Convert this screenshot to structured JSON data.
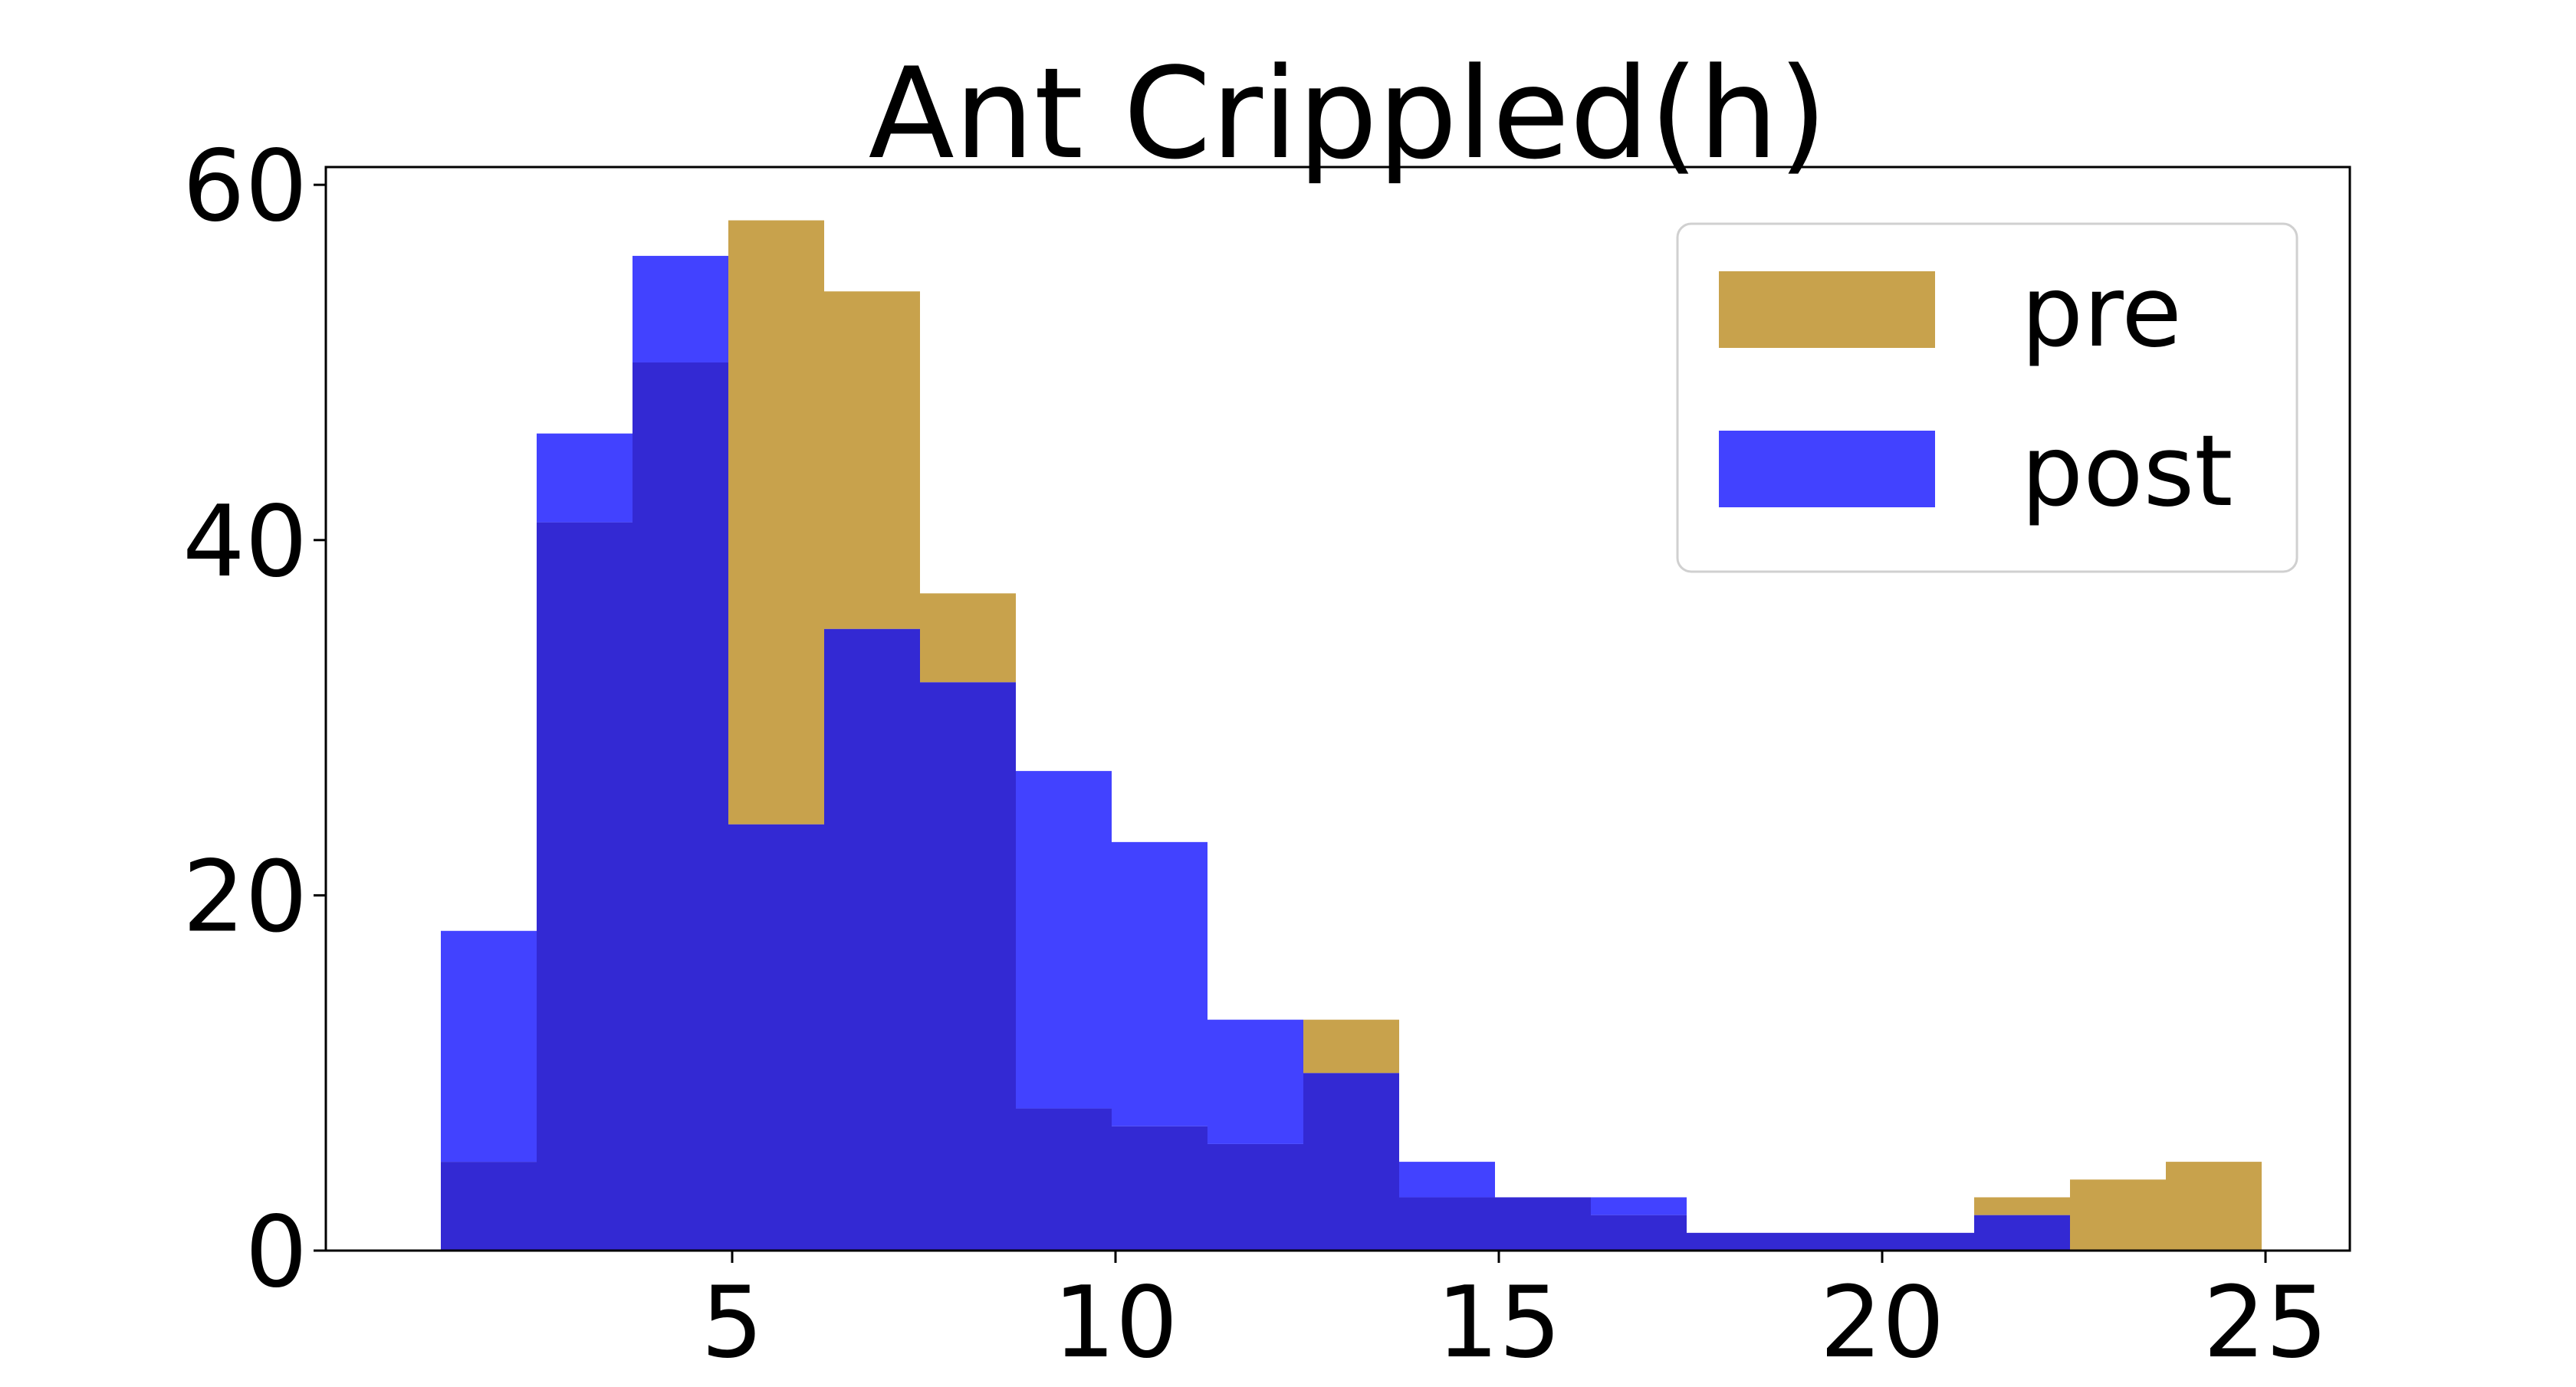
{
  "chart_data": {
    "type": "bar",
    "subtype": "overlapping-histogram",
    "title": "Ant Crippled(h)",
    "xlabel": "",
    "ylabel": "",
    "xlim": [
      -0.3,
      26.1
    ],
    "ylim": [
      0,
      61
    ],
    "xticks": [
      5,
      10,
      15,
      20,
      25
    ],
    "yticks": [
      0,
      20,
      40,
      60
    ],
    "xtick_labels": [
      "5",
      "10",
      "15",
      "20",
      "25"
    ],
    "ytick_labels": [
      "0",
      "20",
      "40",
      "60"
    ],
    "grid": false,
    "legend_position": "top-right",
    "bin_edges": [
      1.2,
      2.45,
      3.7,
      4.95,
      6.2,
      7.45,
      8.7,
      9.95,
      11.2,
      12.45,
      13.7,
      14.95,
      16.2,
      17.45,
      18.7,
      19.95,
      21.2,
      22.45,
      23.7,
      24.95
    ],
    "series": [
      {
        "name": "pre",
        "color": "#c8a24c",
        "values": [
          5,
          41,
          50,
          58,
          54,
          37,
          8,
          7,
          6,
          13,
          3,
          3,
          2,
          1,
          1,
          1,
          3,
          4,
          5
        ]
      },
      {
        "name": "post",
        "color": "#4242ff",
        "values": [
          18,
          46,
          56,
          24,
          35,
          32,
          27,
          23,
          13,
          10,
          5,
          3,
          3,
          1,
          1,
          1,
          2,
          0,
          0
        ]
      }
    ],
    "overlap_color": "#3329d3"
  }
}
